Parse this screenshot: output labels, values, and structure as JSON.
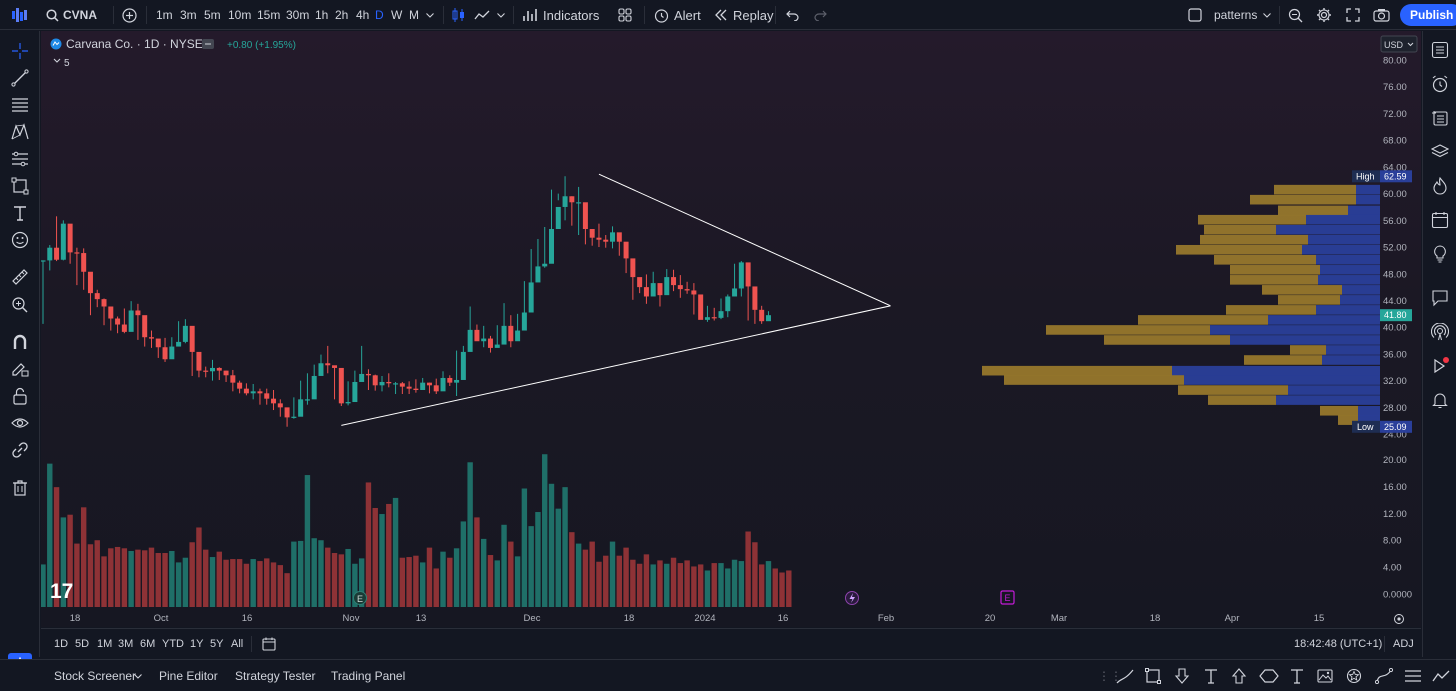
{
  "toolbar": {
    "symbol": "CVNA",
    "timeframes": [
      "1m",
      "3m",
      "5m",
      "10m",
      "15m",
      "30m",
      "1h",
      "2h",
      "4h",
      "D",
      "W",
      "M"
    ],
    "active_timeframe": "D",
    "indicators": "Indicators",
    "alert": "Alert",
    "replay": "Replay",
    "layout_name": "patterns",
    "publish": "Publish",
    "accent": "#2962ff"
  },
  "legend": {
    "title": "Carvana Co. · 1D · NYSE",
    "change": "+0.80 (+1.95%)",
    "indicator_count": "5"
  },
  "price_axis": {
    "currency": "USD",
    "labels": [
      "80.00",
      "76.00",
      "72.00",
      "68.00",
      "64.00",
      "60.00",
      "56.00",
      "52.00",
      "48.00",
      "44.00",
      "40.00",
      "36.00",
      "32.00",
      "28.00",
      "24.00"
    ],
    "high_label": "High",
    "high_value": "62.59",
    "last_value": "41.80",
    "low_label": "Low",
    "low_value": "25.09"
  },
  "volume_axis": {
    "labels": [
      "20.00",
      "16.00",
      "12.00",
      "8.00",
      "4.00",
      "0.0000"
    ]
  },
  "time_axis": {
    "labels": [
      "18",
      "Oct",
      "16",
      "Nov",
      "13",
      "Dec",
      "18",
      "2024",
      "16",
      "Feb",
      "20",
      "Mar",
      "18",
      "Apr",
      "15"
    ]
  },
  "earnings_marker": "E",
  "bottom": {
    "ranges": [
      "1D",
      "5D",
      "1M",
      "3M",
      "6M",
      "YTD",
      "1Y",
      "5Y",
      "All"
    ],
    "clock": "18:42:48 (UTC+1)",
    "adj": "ADJ"
  },
  "panels": {
    "items": [
      "Stock Screener",
      "Pine Editor",
      "Strategy Tester",
      "Trading Panel"
    ]
  },
  "colors": {
    "up": "#26a69a",
    "down": "#ef5350",
    "vol_up": "#1f6f68",
    "vol_down": "#8e3236",
    "vp_gold": "#9a7b2c",
    "vp_blue": "#2a3f9a",
    "line": "#ffffff"
  },
  "candles": [
    [
      50.0,
      50.0,
      40.5
    ],
    [
      51.9,
      52.3,
      48.5
    ],
    [
      50.1,
      56.6,
      49.9
    ],
    [
      55.5,
      56.0,
      50.0
    ],
    [
      51.2,
      54.5,
      49.5
    ],
    [
      51.1,
      51.9,
      46.3
    ],
    [
      48.3,
      51.8,
      45.6
    ],
    [
      45.1,
      46.3,
      41.8
    ],
    [
      44.2,
      45.6,
      43.0
    ],
    [
      43.1,
      44.3,
      40.3
    ],
    [
      41.3,
      42.5,
      39.5
    ],
    [
      40.4,
      41.6,
      39.1
    ],
    [
      39.3,
      42.8,
      39.1
    ],
    [
      42.5,
      43.9,
      39.6
    ],
    [
      41.8,
      43.5,
      38.1
    ],
    [
      38.5,
      39.1,
      37.1
    ],
    [
      38.3,
      39.5,
      36.9
    ],
    [
      37.0,
      38.0,
      35.4
    ],
    [
      35.2,
      38.4,
      34.8
    ],
    [
      37.1,
      38.5,
      36.3
    ],
    [
      37.8,
      40.9,
      37.6
    ],
    [
      40.2,
      41.2,
      37.6
    ],
    [
      36.3,
      38.3,
      32.7
    ],
    [
      33.5,
      35.0,
      32.5
    ],
    [
      33.4,
      34.1,
      32.5
    ],
    [
      33.9,
      35.1,
      32.0
    ],
    [
      33.5,
      34.0,
      32.1
    ],
    [
      32.8,
      33.5,
      31.8
    ],
    [
      31.7,
      33.6,
      30.4
    ],
    [
      30.8,
      32.0,
      30.1
    ],
    [
      30.1,
      31.6,
      29.8
    ],
    [
      30.4,
      31.5,
      29.2
    ],
    [
      30.1,
      30.8,
      28.4
    ],
    [
      29.3,
      30.8,
      28.4
    ],
    [
      28.6,
      30.6,
      27.6
    ],
    [
      28.0,
      29.2,
      26.6
    ],
    [
      26.5,
      27.9,
      25.1
    ],
    [
      26.6,
      29.5,
      26.3
    ],
    [
      29.2,
      32.0,
      28.6
    ],
    [
      29.2,
      33.1,
      28.4
    ],
    [
      32.7,
      34.4,
      31.9
    ],
    [
      34.6,
      35.9,
      33.1
    ],
    [
      34.3,
      37.2,
      33.1
    ],
    [
      33.9,
      34.1,
      29.2
    ],
    [
      28.6,
      29.8,
      28.2
    ],
    [
      28.8,
      31.9,
      28.3
    ],
    [
      31.8,
      33.5,
      31.6
    ],
    [
      33.0,
      37.2,
      32.3
    ],
    [
      32.8,
      33.7,
      30.6
    ],
    [
      31.3,
      32.9,
      30.5
    ],
    [
      31.8,
      32.7,
      30.4
    ],
    [
      31.6,
      33.1,
      31.0
    ],
    [
      31.6,
      31.8,
      30.0
    ],
    [
      31.1,
      31.8,
      30.0
    ],
    [
      30.8,
      31.9,
      30.0
    ],
    [
      30.6,
      32.2,
      30.2
    ],
    [
      31.7,
      32.4,
      30.7
    ],
    [
      31.3,
      31.7,
      30.1
    ],
    [
      30.4,
      32.3,
      30.0
    ],
    [
      32.4,
      33.4,
      31.4
    ],
    [
      31.7,
      32.8,
      31.2
    ],
    [
      32.1,
      36.5,
      29.7
    ],
    [
      36.3,
      37.2,
      36.1
    ],
    [
      39.6,
      43.1,
      38.4
    ],
    [
      37.9,
      40.4,
      38.1
    ],
    [
      38.3,
      40.2,
      37.0
    ],
    [
      36.9,
      38.7,
      36.2
    ],
    [
      37.4,
      40.3,
      37.2
    ],
    [
      40.2,
      43.6,
      38.8
    ],
    [
      37.9,
      41.8,
      37.0
    ],
    [
      39.5,
      42.0,
      38.4
    ],
    [
      42.2,
      46.9,
      41.9
    ],
    [
      46.7,
      51.7,
      46.0
    ],
    [
      49.1,
      53.2,
      48.6
    ],
    [
      49.5,
      55.0,
      48.9
    ],
    [
      54.7,
      60.6,
      53.7
    ],
    [
      58.0,
      60.0,
      59.0
    ],
    [
      59.6,
      62.6,
      56.0
    ],
    [
      58.7,
      59.6,
      55.2
    ],
    [
      58.7,
      61.0,
      53.8
    ],
    [
      54.7,
      56.1,
      52.4
    ],
    [
      53.4,
      54.6,
      52.2
    ],
    [
      53.1,
      55.5,
      52.0
    ],
    [
      52.8,
      53.8,
      51.9
    ],
    [
      54.2,
      55.1,
      51.8
    ],
    [
      52.8,
      53.6,
      50.7
    ],
    [
      50.3,
      51.0,
      48.1
    ],
    [
      47.5,
      48.5,
      44.1
    ],
    [
      46.0,
      47.4,
      45.1
    ],
    [
      44.6,
      47.9,
      43.5
    ],
    [
      46.6,
      48.3,
      45.1
    ],
    [
      44.8,
      46.5,
      43.1
    ],
    [
      47.5,
      48.7,
      46.1
    ],
    [
      46.3,
      48.6,
      45.4
    ],
    [
      45.7,
      47.8,
      44.4
    ],
    [
      45.5,
      46.8,
      45.0
    ],
    [
      44.9,
      46.6,
      41.9
    ],
    [
      41.1,
      42.6,
      41.5
    ],
    [
      41.5,
      43.2,
      40.8
    ],
    [
      41.4,
      42.9,
      41.0
    ],
    [
      42.4,
      44.3,
      41.2
    ],
    [
      44.6,
      44.9,
      41.5
    ],
    [
      45.8,
      49.5,
      44.6
    ],
    [
      49.7,
      49.9,
      44.6
    ],
    [
      46.1,
      46.5,
      41.0
    ],
    [
      42.6,
      43.8,
      40.5
    ],
    [
      40.9,
      43.2,
      40.5
    ],
    [
      41.8,
      42.4,
      41.2
    ]
  ],
  "volumes": [
    4.4,
    19.4,
    15.9,
    11.4,
    11.8,
    7.5,
    12.9,
    7.4,
    8.0,
    5.6,
    6.8,
    7.0,
    6.8,
    6.4,
    6.6,
    6.5,
    6.9,
    6.1,
    6.1,
    6.4,
    4.7,
    5.4,
    7.7,
    9.9,
    6.6,
    5.5,
    6.3,
    5.1,
    5.2,
    5.2,
    4.5,
    5.2,
    4.9,
    5.3,
    4.7,
    4.3,
    3.1,
    7.8,
    7.9,
    17.7,
    8.3,
    8.0,
    6.9,
    6.1,
    5.9,
    6.7,
    4.5,
    5.3,
    16.6,
    12.8,
    11.9,
    13.4,
    14.3,
    5.4,
    5.5,
    5.7,
    4.7,
    6.9,
    3.8,
    6.3,
    5.4,
    6.8,
    10.8,
    19.6,
    11.4,
    8.2,
    5.8,
    5.0,
    10.3,
    7.8,
    5.6,
    15.7,
    10.1,
    12.2,
    20.8,
    16.4,
    12.7,
    15.9,
    9.2,
    7.5,
    6.6,
    7.8,
    4.8,
    5.7,
    7.8,
    5.7,
    6.9,
    5.1,
    4.5,
    5.9,
    4.4,
    5.0,
    4.5,
    5.4,
    4.6,
    5.0,
    4.1,
    4.4,
    3.5,
    4.6,
    4.6,
    3.8,
    5.1,
    4.9,
    9.3,
    7.7,
    4.4,
    4.9,
    3.8,
    3.2,
    3.5
  ],
  "volume_profile": [
    {
      "price": 60.5,
      "gold": 82,
      "blue": 24
    },
    {
      "price": 59.0,
      "gold": 106,
      "blue": 24
    },
    {
      "price": 57.4,
      "gold": 70,
      "blue": 32
    },
    {
      "price": 56.0,
      "gold": 108,
      "blue": 74
    },
    {
      "price": 54.5,
      "gold": 72,
      "blue": 104
    },
    {
      "price": 53.0,
      "gold": 108,
      "blue": 72
    },
    {
      "price": 51.5,
      "gold": 126,
      "blue": 78
    },
    {
      "price": 50.0,
      "gold": 102,
      "blue": 64
    },
    {
      "price": 48.5,
      "gold": 90,
      "blue": 60
    },
    {
      "price": 47.0,
      "gold": 88,
      "blue": 62
    },
    {
      "price": 45.5,
      "gold": 80,
      "blue": 38
    },
    {
      "price": 44.0,
      "gold": 62,
      "blue": 40
    },
    {
      "price": 42.5,
      "gold": 90,
      "blue": 64
    },
    {
      "price": 41.0,
      "gold": 130,
      "blue": 112
    },
    {
      "price": 39.5,
      "gold": 164,
      "blue": 170
    },
    {
      "price": 38.0,
      "gold": 126,
      "blue": 150
    },
    {
      "price": 36.5,
      "gold": 36,
      "blue": 54
    },
    {
      "price": 35.0,
      "gold": 78,
      "blue": 58
    },
    {
      "price": 33.4,
      "gold": 190,
      "blue": 208
    },
    {
      "price": 32.0,
      "gold": 180,
      "blue": 196
    },
    {
      "price": 30.5,
      "gold": 110,
      "blue": 92
    },
    {
      "price": 29.0,
      "gold": 68,
      "blue": 104
    },
    {
      "price": 27.4,
      "gold": 38,
      "blue": 22
    },
    {
      "price": 26.0,
      "gold": 20,
      "blue": 22
    }
  ],
  "trendlines": {
    "upper": [
      [
        82,
        62.9
      ],
      [
        125,
        43.2
      ]
    ],
    "lower": [
      [
        44,
        25.3
      ],
      [
        125,
        43.2
      ]
    ]
  }
}
